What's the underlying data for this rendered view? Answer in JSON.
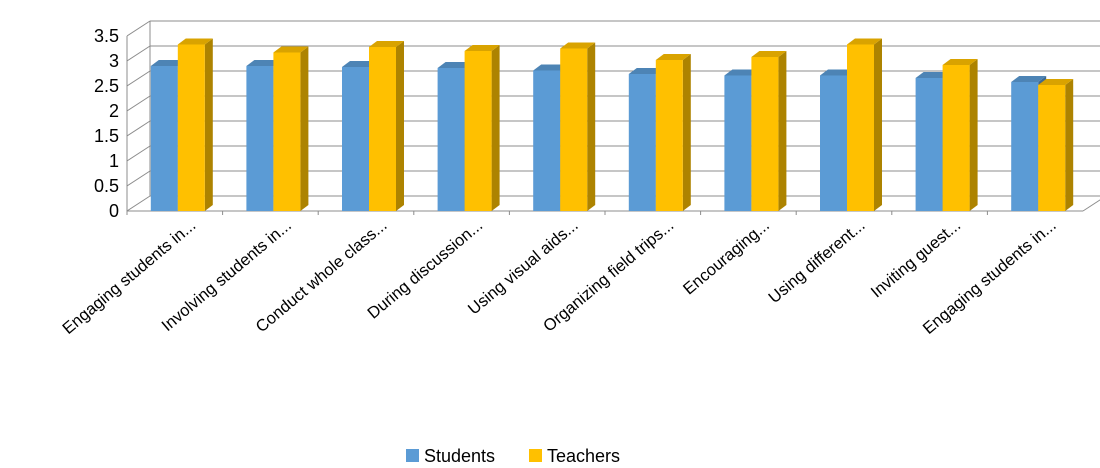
{
  "chart_data": {
    "type": "bar",
    "style": "3d-clustered",
    "title": "",
    "xlabel": "",
    "ylabel": "",
    "ylim": [
      0,
      3.5
    ],
    "yticks": [
      "0",
      "0.5",
      "1",
      "1.5",
      "2",
      "2.5",
      "3",
      "3.5"
    ],
    "grid": true,
    "legend_position": "bottom",
    "categories": [
      "Engaging students in...",
      "Involving students in...",
      "Conduct whole class...",
      "During discussion...",
      "Using visual aids...",
      "Organizing field trips...",
      "Encouraging...",
      "Using different...",
      "Inviting guest...",
      "Engaging students in..."
    ],
    "series": [
      {
        "name": "Students",
        "color": "#5b9bd5",
        "values": [
          2.9,
          2.9,
          2.88,
          2.86,
          2.81,
          2.74,
          2.71,
          2.71,
          2.66,
          2.58
        ]
      },
      {
        "name": "Teachers",
        "color": "#ffc000",
        "values": [
          3.33,
          3.17,
          3.28,
          3.2,
          3.25,
          3.02,
          3.08,
          3.33,
          2.92,
          2.52
        ]
      }
    ]
  }
}
